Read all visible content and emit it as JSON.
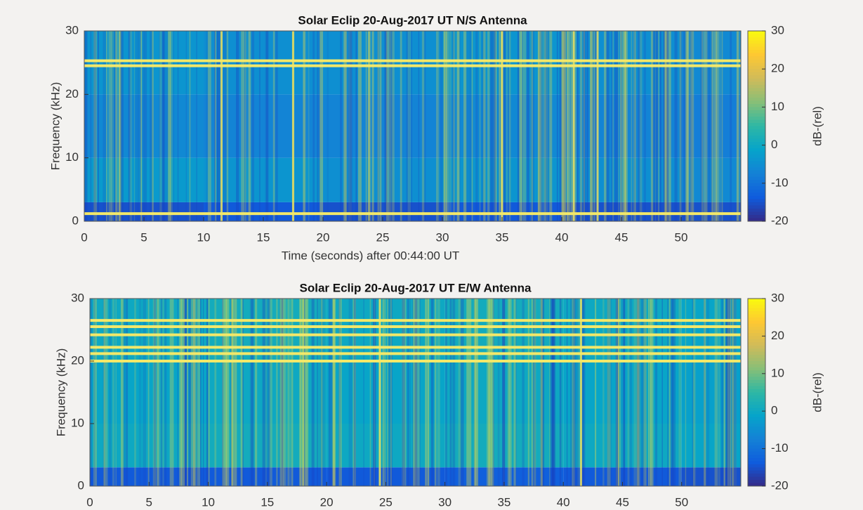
{
  "chart_data": [
    {
      "type": "spectrogram",
      "title": "Solar Eclip 20-Aug-2017 UT   N/S Antenna",
      "xlabel": "Time (seconds) after 00:44:00 UT",
      "ylabel": "Frequency (kHz)",
      "colorbar_label": "dB-(rel)",
      "xlim": [
        0,
        55
      ],
      "xticks": [
        0,
        5,
        10,
        15,
        20,
        25,
        30,
        35,
        40,
        45,
        50
      ],
      "ylim": [
        0,
        30
      ],
      "yticks": [
        0,
        10,
        20,
        30
      ],
      "clim": [
        -20,
        30
      ],
      "cticks": [
        -20,
        -10,
        0,
        10,
        20,
        30
      ],
      "xbins": [
        0,
        10,
        20,
        30,
        40,
        50,
        55
      ],
      "ybins": [
        0,
        3,
        10,
        20,
        30
      ],
      "z": [
        [
          -15,
          -14,
          -15,
          -14,
          -15,
          -15
        ],
        [
          -3,
          -4,
          -5,
          -4,
          -5,
          -6
        ],
        [
          -6,
          -7,
          -7,
          -6,
          -7,
          -8
        ],
        [
          -4,
          -5,
          -5,
          -4,
          -5,
          -6
        ]
      ],
      "bands": [
        25.3,
        24.5,
        1.2
      ],
      "streaks": [
        11.5,
        17.5,
        35,
        41,
        43
      ]
    },
    {
      "type": "spectrogram",
      "title": "Solar Eclip 20-Aug-2017 UT   E/W Antenna",
      "ylabel": "Frequency (kHz)",
      "colorbar_label": "dB-(rel)",
      "xlim": [
        0,
        55
      ],
      "xticks": [
        0,
        5,
        10,
        15,
        20,
        25,
        30,
        35,
        40,
        45,
        50
      ],
      "ylim": [
        0,
        30
      ],
      "yticks": [
        0,
        10,
        20,
        30
      ],
      "clim": [
        -20,
        30
      ],
      "cticks": [
        -20,
        -10,
        0,
        10,
        20,
        30
      ],
      "xbins": [
        0,
        10,
        20,
        30,
        40,
        50,
        55
      ],
      "ybins": [
        0,
        3,
        10,
        20,
        30
      ],
      "z": [
        [
          -14,
          -14,
          -14,
          -13,
          -14,
          -15
        ],
        [
          0,
          1,
          0,
          1,
          0,
          -1
        ],
        [
          -1,
          0,
          -1,
          0,
          -1,
          -2
        ],
        [
          0,
          1,
          0,
          1,
          0,
          -1
        ]
      ],
      "bands": [
        26.5,
        25.5,
        24.2,
        22.2,
        21.2,
        20
      ],
      "streaks": [
        24.5,
        41.5
      ]
    }
  ]
}
